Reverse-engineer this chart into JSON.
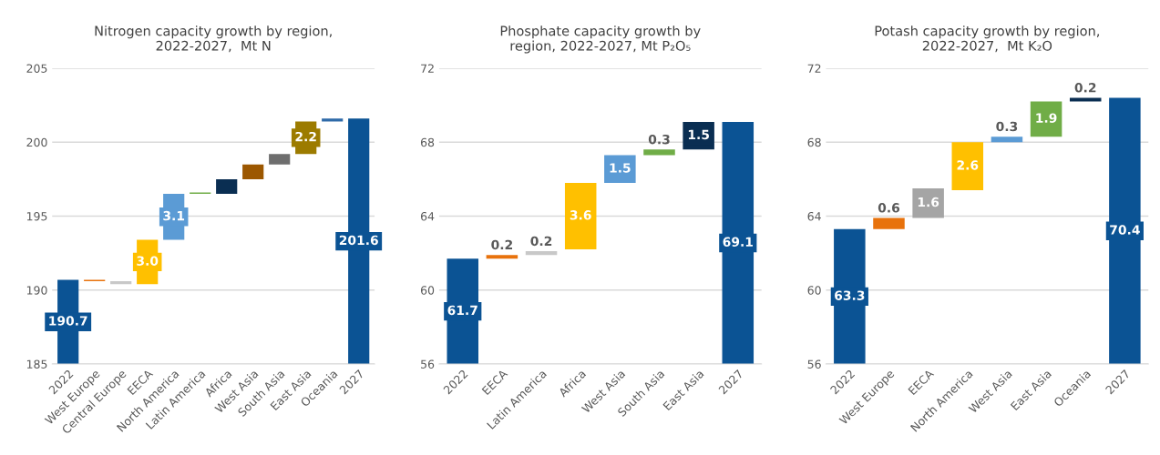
{
  "chart_data": [
    {
      "type": "bar",
      "title": "Nitrogen capacity growth by region,\n2022-2027,  Mt N",
      "categories": [
        "2022",
        "West Europe",
        "Central Europe",
        "EECA",
        "North America",
        "Latin America",
        "Africa",
        "West Asia",
        "South Asia",
        "East Asia",
        "Oceania",
        "2027"
      ],
      "values": [
        190.7,
        -0.1,
        -0.2,
        3.0,
        3.1,
        0.1,
        1.0,
        1.0,
        0.7,
        2.2,
        0.2,
        201.6
      ],
      "base": [
        null,
        190.7,
        190.6,
        190.4,
        193.4,
        196.5,
        196.5,
        197.5,
        198.5,
        199.2,
        201.4,
        null
      ],
      "colors": [
        "#0b5394",
        "#e8720c",
        "#c8c8c8",
        "#ffc000",
        "#5b9bd5",
        "#70ad47",
        "#0a2e52",
        "#9c5700",
        "#6e6e6e",
        "#9c7b00",
        "#2f6aa8",
        "#0b5394"
      ],
      "value_labels": [
        "190.7",
        null,
        null,
        "3.0",
        "3.1",
        null,
        null,
        null,
        null,
        "2.2",
        null,
        "201.6"
      ],
      "ylim": [
        185,
        205
      ],
      "yticks": [
        185,
        190,
        195,
        200,
        205
      ],
      "grid": "y"
    },
    {
      "type": "bar",
      "title": "Phosphate capacity growth by\nregion, 2022-2027, Mt P₂O₅",
      "categories": [
        "2022",
        "EECA",
        "Latin America",
        "Africa",
        "West Asia",
        "South Asia",
        "East Asia",
        "2027"
      ],
      "values": [
        61.7,
        0.2,
        0.2,
        3.6,
        1.5,
        0.3,
        1.5,
        69.1
      ],
      "base": [
        null,
        61.7,
        61.9,
        62.2,
        65.8,
        67.3,
        67.6,
        null
      ],
      "colors": [
        "#0b5394",
        "#e8720c",
        "#c8c8c8",
        "#ffc000",
        "#5b9bd5",
        "#70ad47",
        "#0a2e52",
        "#0b5394"
      ],
      "data_labels": true,
      "ylim": [
        56,
        72
      ],
      "yticks": [
        56,
        60,
        64,
        68,
        72
      ],
      "grid": "y"
    },
    {
      "type": "bar",
      "title": "Potash capacity growth by region,\n2022-2027,  Mt K₂O",
      "categories": [
        "2022",
        "West Europe",
        "EECA",
        "North America",
        "West Asia",
        "East Asia",
        "Oceania",
        "2027"
      ],
      "values": [
        63.3,
        0.6,
        1.6,
        2.6,
        0.3,
        1.9,
        0.2,
        70.4
      ],
      "base": [
        null,
        63.3,
        63.9,
        65.4,
        68.0,
        68.3,
        70.2,
        null
      ],
      "colors": [
        "#0b5394",
        "#e8720c",
        "#a5a5a5",
        "#ffc000",
        "#5b9bd5",
        "#70ad47",
        "#0a2e52",
        "#0b5394"
      ],
      "data_labels": true,
      "ylim": [
        56,
        72
      ],
      "yticks": [
        56,
        60,
        64,
        68,
        72
      ],
      "grid": "y"
    }
  ]
}
